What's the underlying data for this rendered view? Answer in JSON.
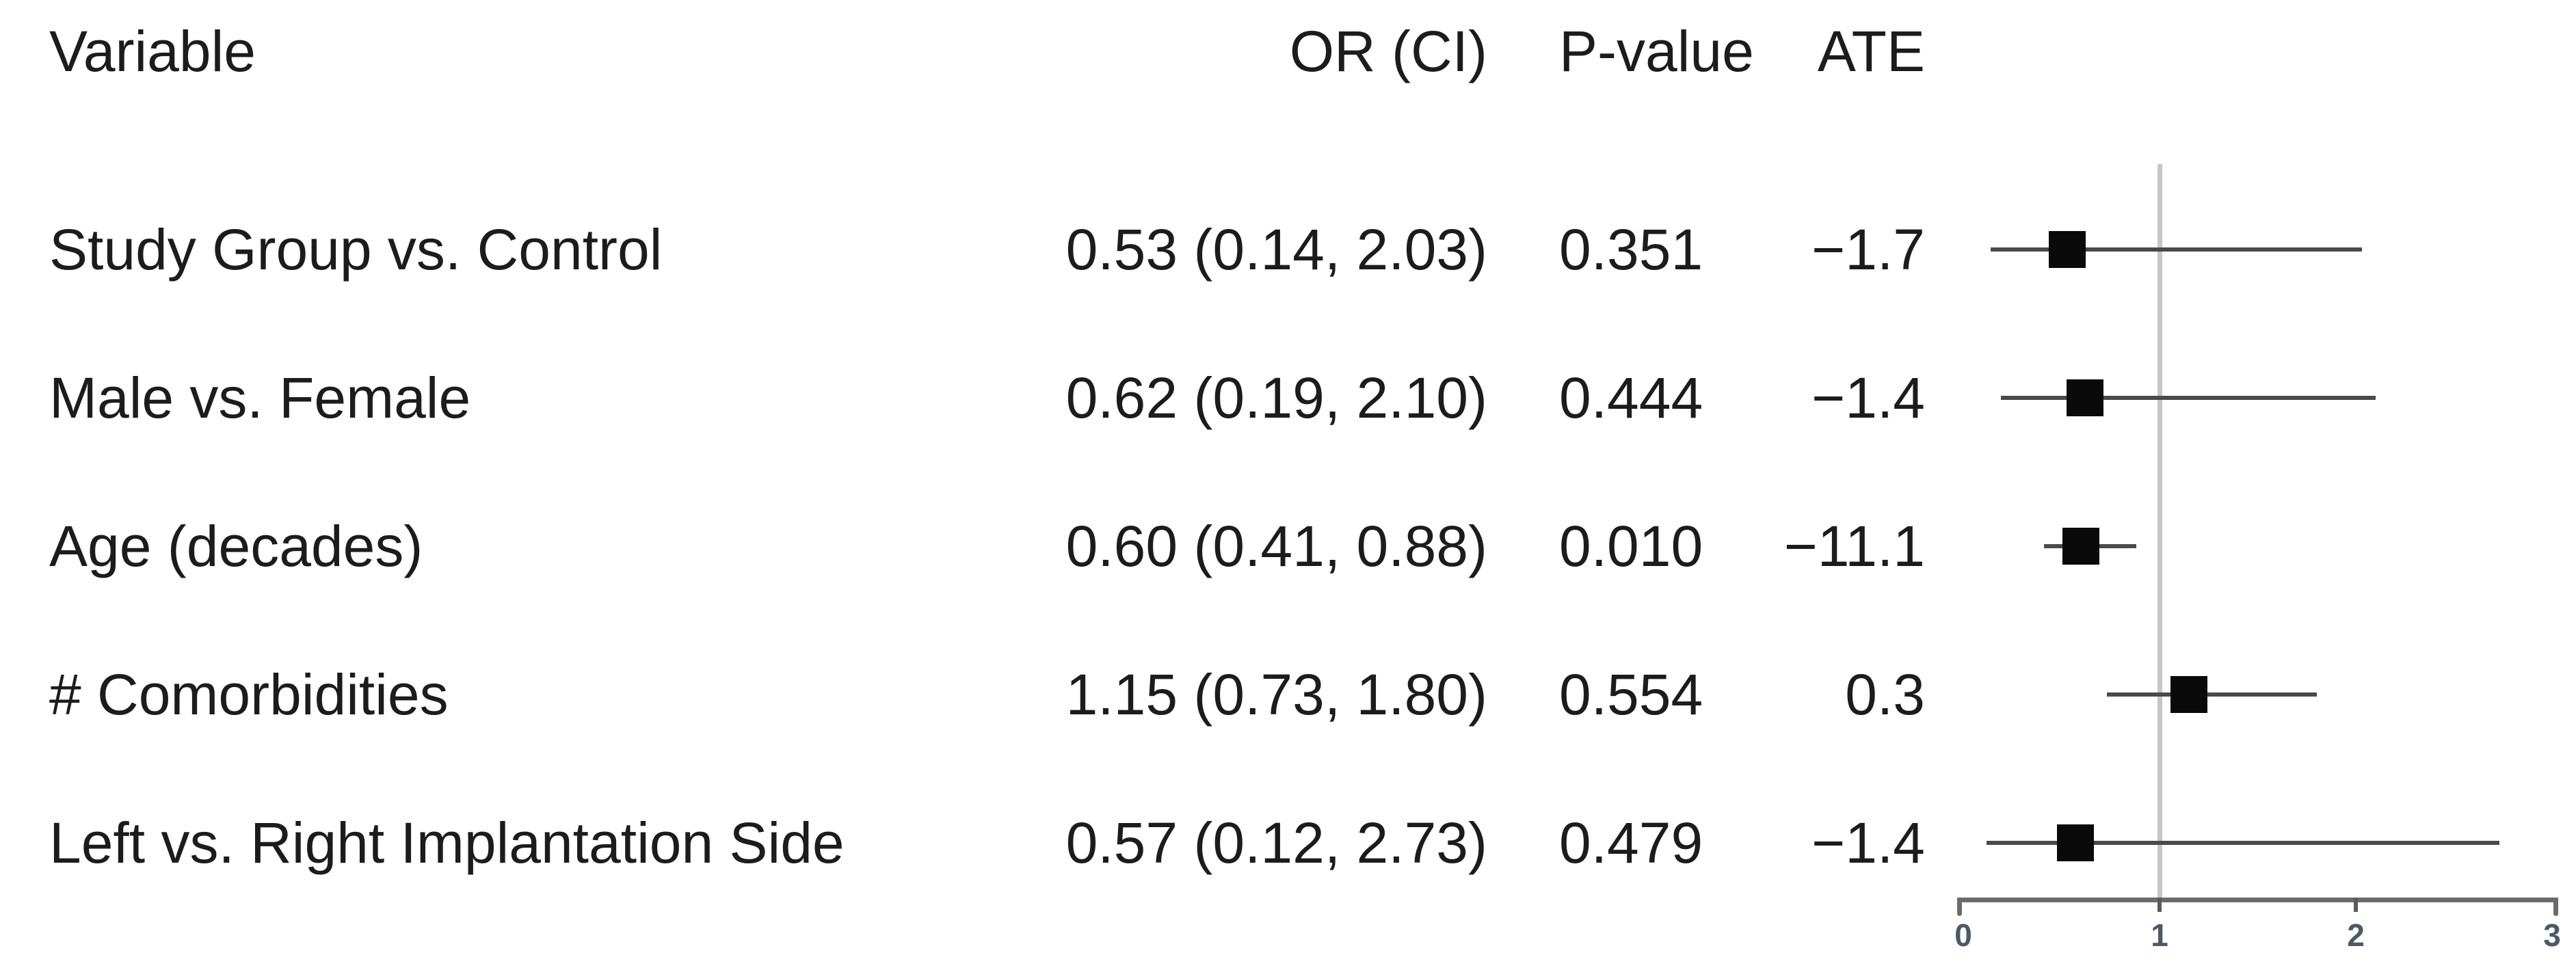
{
  "chart_data": {
    "type": "forest",
    "columns": [
      "Variable",
      "OR (CI)",
      "P-value",
      "ATE"
    ],
    "rows": [
      {
        "variable": "Study Group vs. Control",
        "or": 0.53,
        "ci_low": 0.14,
        "ci_high": 2.03,
        "or_ci": "0.53 (0.14, 2.03)",
        "p_value": "0.351",
        "ate": "−1.7"
      },
      {
        "variable": "Male vs. Female",
        "or": 0.62,
        "ci_low": 0.19,
        "ci_high": 2.1,
        "or_ci": "0.62 (0.19, 2.10)",
        "p_value": "0.444",
        "ate": "−1.4"
      },
      {
        "variable": "Age (decades)",
        "or": 0.6,
        "ci_low": 0.41,
        "ci_high": 0.88,
        "or_ci": "0.60 (0.41, 0.88)",
        "p_value": "0.010",
        "ate": "−11.1"
      },
      {
        "variable": "# Comorbidities",
        "or": 1.15,
        "ci_low": 0.73,
        "ci_high": 1.8,
        "or_ci": "1.15 (0.73, 1.80)",
        "p_value": "0.554",
        "ate": "0.3"
      },
      {
        "variable": "Left vs. Right Implantation Side",
        "or": 0.57,
        "ci_low": 0.12,
        "ci_high": 2.73,
        "or_ci": "0.57 (0.12, 2.73)",
        "p_value": "0.479",
        "ate": "−1.4"
      }
    ],
    "axis": {
      "min": 0,
      "max": 3,
      "ticks": [
        0,
        1,
        2,
        3
      ],
      "reference_line": 1,
      "scale": "linear"
    },
    "colors": {
      "text": "#1c1c1c",
      "ci_line": "#4a4a4a",
      "marker": "#0a0a0a",
      "reference_line": "#c6c6c6",
      "axis": "#6b6b6b",
      "tick_label": "#4c5a66"
    }
  }
}
